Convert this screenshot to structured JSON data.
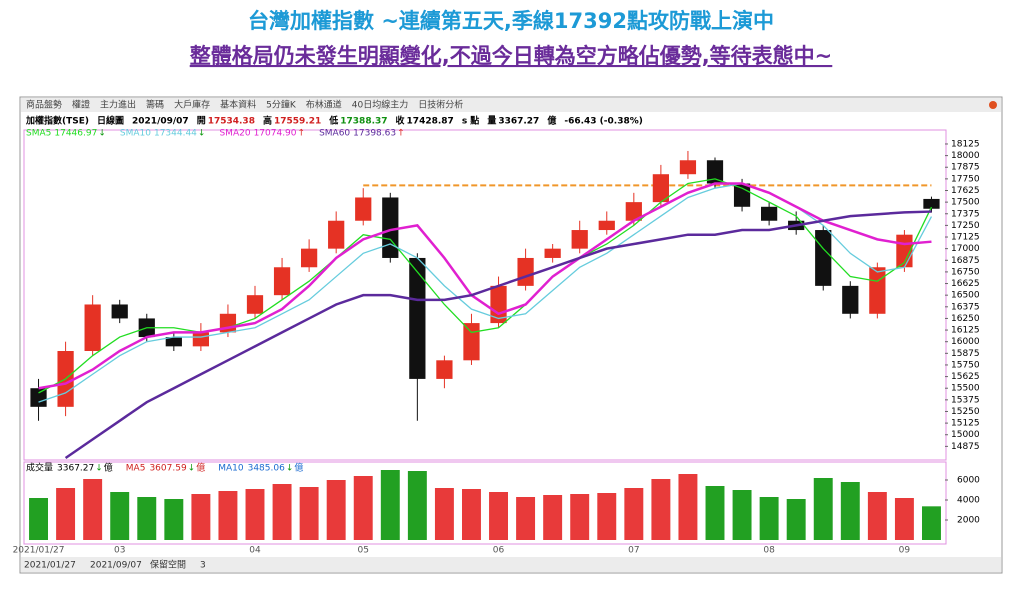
{
  "header": {
    "line1": "台灣加權指數 ~連續第五天,季線17392點攻防戰上演中",
    "line2": "整體格局仍未發生明顯變化,不過今日轉為空方略佔優勢,等待表態中~"
  },
  "toolbar": {
    "tabs": [
      "商品盤勢",
      "權證",
      "主力進出",
      "籌碼",
      "大戶庫存",
      "基本資料",
      "5分鐘K",
      "布林通道",
      "40日均線主力",
      "日技術分析"
    ]
  },
  "info": {
    "name": "加權指數(TSE)",
    "period": "日線圖",
    "date": "2021/09/07",
    "open_label": "開",
    "open": "17534.38",
    "high_label": "高",
    "high": "17559.21",
    "low_label": "低",
    "low": "17388.37",
    "close_label": "收",
    "close": "17428.87",
    "unit": "s 點",
    "vol_label": "量",
    "vol": "3367.27",
    "vol_unit": "億",
    "change": "-66.43 (-0.38%)"
  },
  "chart_data": [
    {
      "type": "candlestick",
      "categories": [
        "2021/01/27",
        null,
        null,
        "03",
        null,
        null,
        null,
        null,
        "04",
        null,
        null,
        null,
        "05",
        null,
        null,
        null,
        null,
        "06",
        null,
        null,
        null,
        null,
        "07",
        null,
        null,
        null,
        null,
        "08",
        null,
        null,
        null,
        null,
        "09",
        null
      ],
      "open": [
        15500,
        15300,
        15900,
        16400,
        16250,
        16050,
        15950,
        16100,
        16300,
        16500,
        16800,
        17000,
        17300,
        17550,
        16900,
        15600,
        15800,
        16200,
        16600,
        16900,
        17000,
        17200,
        17300,
        17500,
        17800,
        17950,
        17700,
        17450,
        17300,
        17200,
        16600,
        16300,
        16800,
        17534.38
      ],
      "high": [
        15600,
        16000,
        16500,
        16450,
        16300,
        16100,
        16200,
        16400,
        16600,
        16900,
        17100,
        17400,
        17650,
        17600,
        16950,
        15850,
        16300,
        16700,
        17000,
        17050,
        17300,
        17400,
        17600,
        17900,
        18050,
        17980,
        17750,
        17500,
        17400,
        17250,
        16650,
        16850,
        17200,
        17559.21
      ],
      "low": [
        15150,
        15200,
        15850,
        16200,
        16000,
        15900,
        15900,
        16050,
        16250,
        16450,
        16750,
        16950,
        17250,
        16850,
        15150,
        15500,
        15750,
        16150,
        16550,
        16850,
        16950,
        17150,
        17250,
        17450,
        17750,
        17650,
        17400,
        17250,
        17150,
        16550,
        16250,
        16250,
        16750,
        17388.37
      ],
      "close": [
        15300,
        15900,
        16400,
        16250,
        16050,
        15950,
        16100,
        16300,
        16500,
        16800,
        17000,
        17300,
        17550,
        16900,
        15600,
        15800,
        16200,
        16600,
        16900,
        17000,
        17200,
        17300,
        17500,
        17800,
        17950,
        17700,
        17450,
        17300,
        17200,
        16600,
        16300,
        16800,
        17150,
        17428.87
      ],
      "up_color": "#e53224",
      "down_color": "#111111",
      "series": [
        {
          "name": "SMA5",
          "last": "17446.97",
          "arrow": "↓",
          "arrow_color": "#119911",
          "color": "#22dd22",
          "values": [
            15450,
            15600,
            15850,
            16050,
            16150,
            16150,
            16100,
            16150,
            16250,
            16450,
            16650,
            16900,
            17150,
            17100,
            16750,
            16400,
            16100,
            16150,
            16400,
            16700,
            16900,
            17050,
            17250,
            17500,
            17700,
            17750,
            17650,
            17500,
            17350,
            17000,
            16700,
            16650,
            16850,
            17446.97
          ]
        },
        {
          "name": "SMA10",
          "last": "17344.44",
          "arrow": "↓",
          "arrow_color": "#119911",
          "color": "#66ccdd",
          "values": [
            15350,
            15450,
            15650,
            15850,
            16000,
            16050,
            16050,
            16100,
            16150,
            16300,
            16450,
            16700,
            16950,
            17050,
            16900,
            16600,
            16350,
            16250,
            16300,
            16550,
            16800,
            16950,
            17150,
            17350,
            17550,
            17650,
            17700,
            17600,
            17450,
            17250,
            16950,
            16750,
            16800,
            17344.44
          ]
        },
        {
          "name": "SMA20",
          "last": "17074.90",
          "arrow": "↑",
          "arrow_color": "#dd2222",
          "color": "#e020d0",
          "values": [
            15500,
            15550,
            15700,
            15900,
            16050,
            16100,
            16100,
            16150,
            16200,
            16350,
            16600,
            16900,
            17100,
            17200,
            17250,
            16900,
            16500,
            16300,
            16400,
            16700,
            16900,
            17100,
            17300,
            17450,
            17600,
            17700,
            17700,
            17600,
            17450,
            17300,
            17200,
            17100,
            17050,
            17074.9
          ]
        },
        {
          "name": "SMA60",
          "last": "17398.63",
          "arrow": "↑",
          "arrow_color": "#dd2222",
          "color": "#5b2a9c",
          "values": [
            null,
            14750,
            14950,
            15150,
            15350,
            15500,
            15650,
            15800,
            15950,
            16100,
            16250,
            16400,
            16500,
            16500,
            16450,
            16450,
            16500,
            16600,
            16700,
            16800,
            16900,
            17000,
            17050,
            17100,
            17150,
            17150,
            17200,
            17200,
            17250,
            17300,
            17350,
            17370,
            17390,
            17398.63
          ]
        }
      ],
      "resistance": 17680,
      "resistance_from": 12,
      "resistance_color": "#f0962a",
      "xlim": [
        -0.5,
        33.5
      ],
      "ylim": [
        14750,
        18200
      ],
      "yticks": [
        14875,
        15000,
        15125,
        15250,
        15375,
        15500,
        15625,
        15750,
        15875,
        16000,
        16125,
        16250,
        16375,
        16500,
        16625,
        16750,
        16875,
        17000,
        17125,
        17250,
        17375,
        17500,
        17625,
        17750,
        17875,
        18000,
        18125
      ]
    },
    {
      "type": "bar",
      "title": "成交量",
      "legend": [
        {
          "name": "成交量",
          "value": "3367.27",
          "arrow": "↓",
          "unit": "億"
        },
        {
          "name": "MA5",
          "value": "3607.59",
          "arrow": "↓",
          "unit": "億"
        },
        {
          "name": "MA10",
          "value": "3485.06",
          "arrow": "↓",
          "unit": "億"
        }
      ],
      "values": [
        4200,
        5200,
        6100,
        4800,
        4300,
        4100,
        4600,
        4900,
        5100,
        5600,
        5300,
        6000,
        6400,
        7000,
        6900,
        5200,
        5100,
        4800,
        4300,
        4500,
        4600,
        4700,
        5200,
        6100,
        6600,
        5400,
        5000,
        4300,
        4100,
        6200,
        5800,
        4800,
        4200,
        3367.27
      ],
      "up_color": "#e83a3a",
      "down_color": "#22a022",
      "ylim": [
        0,
        7000
      ],
      "yticks": [
        2000,
        4000,
        6000
      ]
    }
  ],
  "footer": {
    "from": "2021/01/27",
    "to": "2021/09/07",
    "label": "保留空間",
    "num": "3"
  }
}
